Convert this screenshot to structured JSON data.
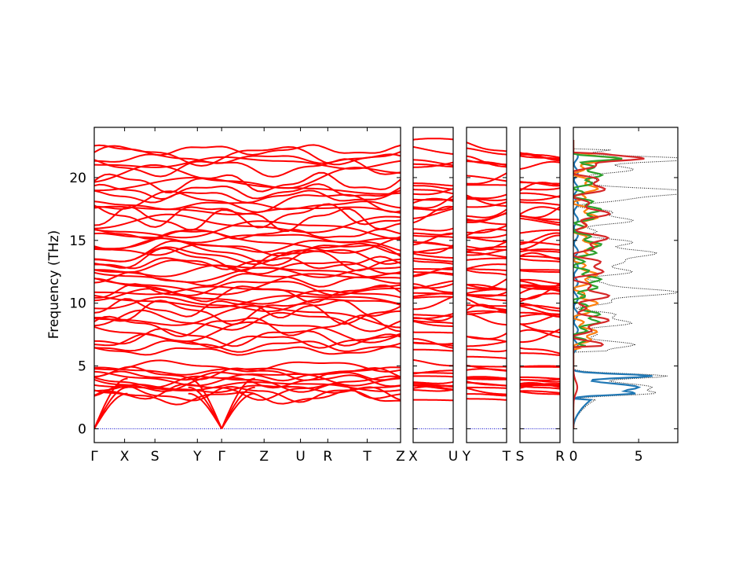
{
  "chart_data": {
    "type": "line",
    "ylabel": "Frequency (THz)",
    "ylim": [
      -1.1,
      24
    ],
    "yticks": [
      0,
      5,
      10,
      15,
      20
    ],
    "segments": [
      {
        "labels": [
          "Γ",
          "X",
          "S",
          "Y",
          "Γ",
          "Z",
          "U",
          "R",
          "T",
          "Z"
        ],
        "positions": [
          0,
          1,
          2,
          3.4,
          4.2,
          5.6,
          6.8,
          7.7,
          9.0,
          10.1
        ]
      },
      {
        "labels": [
          "X",
          "U"
        ],
        "positions": [
          0,
          1
        ]
      },
      {
        "labels": [
          "Y",
          "T"
        ],
        "positions": [
          0,
          1
        ]
      },
      {
        "labels": [
          "S",
          "R"
        ],
        "positions": [
          0,
          1
        ]
      }
    ],
    "band_color": "#ff0000",
    "zero_line_color": "#0000cc",
    "optical_bands_thz": [
      6.2,
      6.6,
      7.0,
      7.3,
      7.8,
      8.2,
      8.6,
      9.0,
      9.3,
      9.6,
      9.9,
      10.2,
      10.5,
      10.8,
      11.0,
      11.3,
      11.6,
      11.9,
      12.3,
      12.6,
      12.9,
      13.2,
      13.5,
      13.8,
      14.0,
      14.3,
      14.6,
      14.9,
      15.2,
      15.5,
      15.9,
      16.3,
      16.7,
      17.0,
      17.4,
      17.8,
      18.1,
      18.5,
      18.9,
      19.3,
      19.6,
      20.0,
      20.8,
      21.2,
      21.5,
      21.8,
      22.2
    ],
    "acoustic_top_thz": [
      2.5,
      2.8,
      3.0,
      3.2,
      3.4,
      3.6,
      3.8,
      4.0,
      4.2,
      4.4,
      4.6,
      5.0
    ],
    "dos": {
      "xlim": [
        0,
        8
      ],
      "xticks": [
        0,
        5
      ],
      "series": [
        {
          "color": "#000000",
          "style": "dotted"
        },
        {
          "color": "#1f77b4",
          "style": "solid"
        },
        {
          "color": "#ff7f0e",
          "style": "solid"
        },
        {
          "color": "#2ca02c",
          "style": "solid"
        },
        {
          "color": "#d62728",
          "style": "solid"
        }
      ]
    }
  }
}
